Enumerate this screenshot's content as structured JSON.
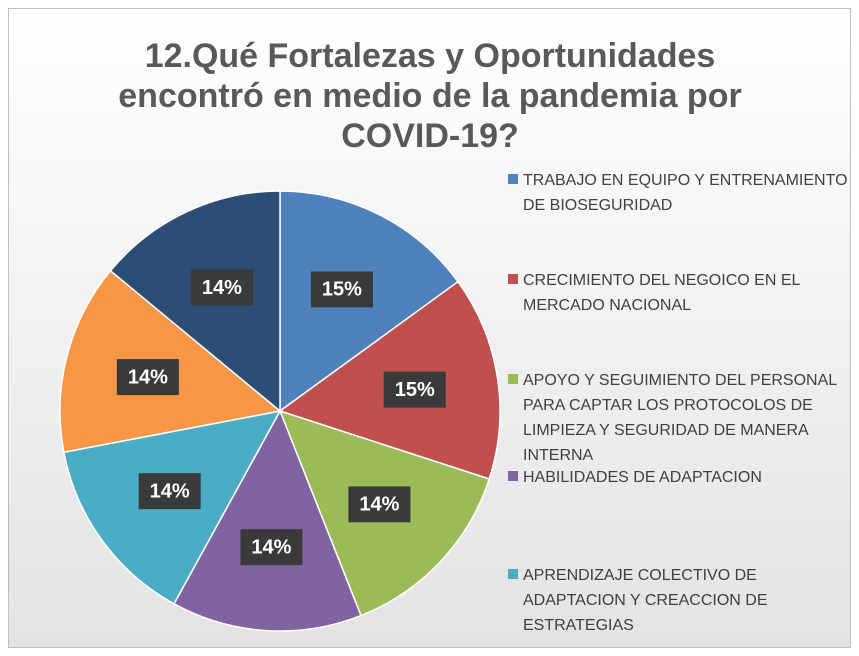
{
  "chart_data": {
    "type": "pie",
    "title": "12.Qué Fortalezas y Oportunidades encontró en medio de la pandemia por COVID-19?",
    "categories": [
      "TRABAJO EN EQUIPO Y ENTRENAMIENTO DE BIOSEGURIDAD",
      "CRECIMIENTO DEL NEGOICO EN EL MERCADO NACIONAL",
      "APOYO Y SEGUIMIENTO DEL PERSONAL PARA CAPTAR LOS PROTOCOLOS DE LIMPIEZA Y SEGURIDAD DE MANERA INTERNA",
      "HABILIDADES DE ADAPTACION",
      "APRENDIZAJE COLECTIVO DE ADAPTACION Y CREACCION DE ESTRATEGIAS",
      null,
      null
    ],
    "values": [
      15,
      15,
      14,
      14,
      14,
      14,
      14
    ],
    "value_labels": [
      "15%",
      "15%",
      "14%",
      "14%",
      "14%",
      "14%",
      "14%"
    ],
    "colors": [
      "#4f81bd",
      "#c0504d",
      "#9bbb59",
      "#8064a2",
      "#4bacc6",
      "#f79646",
      "#2c4d75"
    ],
    "legend": "right"
  }
}
